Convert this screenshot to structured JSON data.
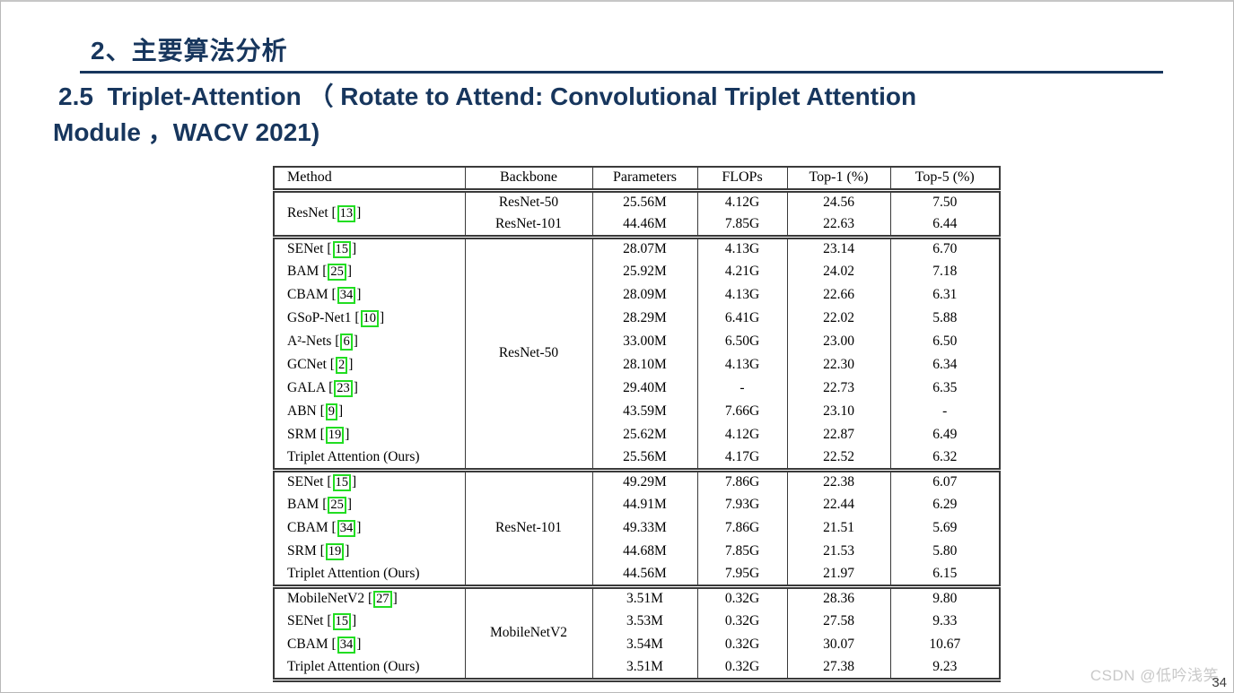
{
  "slide": {
    "section_title": "2、主要算法分析",
    "subtitle_line1": "2.5  Triplet-Attention （ Rotate to Attend: Convolutional Triplet Attention",
    "subtitle_line2": "Module ，WACV 2021)",
    "watermark": "CSDN @低吟浅笑",
    "page_number": "34",
    "accent_color": "#17365D"
  },
  "table": {
    "cite_box_color": "#22DD22",
    "headers": [
      "Method",
      "Backbone",
      "Parameters",
      "FLOPs",
      "Top-1 (%)",
      "Top-5 (%)"
    ],
    "groups": [
      {
        "method": {
          "name": "ResNet",
          "cite": "13"
        },
        "rows": [
          {
            "backbone": "ResNet-50",
            "values": [
              "25.56M",
              "4.12G",
              "24.56",
              "7.50"
            ],
            "bold": [
              1,
              1,
              0,
              0
            ]
          },
          {
            "backbone": "ResNet-101",
            "values": [
              "44.46M",
              "7.85G",
              "22.63",
              "6.44"
            ],
            "bold": [
              1,
              1,
              0,
              0
            ]
          }
        ]
      },
      {
        "backbone": "ResNet-50",
        "rows": [
          {
            "method": {
              "name": "SENet",
              "cite": "15"
            },
            "values": [
              "28.07M",
              "4.13G",
              "23.14",
              "6.70"
            ],
            "bold": [
              0,
              0,
              0,
              0
            ]
          },
          {
            "method": {
              "name": "BAM",
              "cite": "25"
            },
            "values": [
              "25.92M",
              "4.21G",
              "24.02",
              "7.18"
            ],
            "bold": [
              0,
              0,
              0,
              0
            ]
          },
          {
            "method": {
              "name": "CBAM",
              "cite": "34"
            },
            "values": [
              "28.09M",
              "4.13G",
              "22.66",
              "6.31"
            ],
            "bold": [
              0,
              0,
              0,
              0
            ]
          },
          {
            "method": {
              "name": "GSoP-Net1",
              "cite": "10"
            },
            "values": [
              "28.29M",
              "6.41G",
              "22.02",
              "5.88"
            ],
            "bold": [
              0,
              0,
              1,
              1
            ]
          },
          {
            "method": {
              "name": "A²-Nets",
              "cite": "6"
            },
            "values": [
              "33.00M",
              "6.50G",
              "23.00",
              "6.50"
            ],
            "bold": [
              0,
              0,
              0,
              0
            ]
          },
          {
            "method": {
              "name": "GCNet",
              "cite": "2"
            },
            "values": [
              "28.10M",
              "4.13G",
              "22.30",
              "6.34"
            ],
            "bold": [
              0,
              0,
              0,
              0
            ]
          },
          {
            "method": {
              "name": "GALA",
              "cite": "23"
            },
            "values": [
              "29.40M",
              "-",
              "22.73",
              "6.35"
            ],
            "bold": [
              0,
              0,
              0,
              0
            ]
          },
          {
            "method": {
              "name": "ABN",
              "cite": "9"
            },
            "values": [
              "43.59M",
              "7.66G",
              "23.10",
              "-"
            ],
            "bold": [
              0,
              0,
              0,
              0
            ]
          },
          {
            "method": {
              "name": "SRM",
              "cite": "19"
            },
            "values": [
              "25.62M",
              "4.12G",
              "22.87",
              "6.49"
            ],
            "bold": [
              0,
              0,
              0,
              0
            ]
          },
          {
            "method": {
              "name": "Triplet Attention (Ours)",
              "cite": null
            },
            "values": [
              "25.56M",
              "4.17G",
              "22.52",
              "6.32"
            ],
            "bold": [
              1,
              0,
              1,
              1
            ]
          }
        ]
      },
      {
        "backbone": "ResNet-101",
        "rows": [
          {
            "method": {
              "name": "SENet",
              "cite": "15"
            },
            "values": [
              "49.29M",
              "7.86G",
              "22.38",
              "6.07"
            ],
            "bold": [
              0,
              0,
              0,
              0
            ]
          },
          {
            "method": {
              "name": "BAM",
              "cite": "25"
            },
            "values": [
              "44.91M",
              "7.93G",
              "22.44",
              "6.29"
            ],
            "bold": [
              0,
              0,
              0,
              0
            ]
          },
          {
            "method": {
              "name": "CBAM",
              "cite": "34"
            },
            "values": [
              "49.33M",
              "7.86G",
              "21.51",
              "5.69"
            ],
            "bold": [
              0,
              0,
              1,
              1
            ]
          },
          {
            "method": {
              "name": "SRM",
              "cite": "19"
            },
            "values": [
              "44.68M",
              "7.85G",
              "21.53",
              "5.80"
            ],
            "bold": [
              0,
              0,
              0,
              0
            ]
          },
          {
            "method": {
              "name": "Triplet Attention (Ours)",
              "cite": null
            },
            "values": [
              "44.56M",
              "7.95G",
              "21.97",
              "6.15"
            ],
            "bold": [
              1,
              0,
              1,
              1
            ]
          }
        ]
      },
      {
        "backbone": "MobileNetV2",
        "rows": [
          {
            "method": {
              "name": "MobileNetV2",
              "cite": "27"
            },
            "values": [
              "3.51M",
              "0.32G",
              "28.36",
              "9.80"
            ],
            "bold": [
              1,
              1,
              0,
              0
            ]
          },
          {
            "method": {
              "name": "SENet",
              "cite": "15"
            },
            "values": [
              "3.53M",
              "0.32G",
              "27.58",
              "9.33"
            ],
            "bold": [
              0,
              0,
              0,
              0
            ]
          },
          {
            "method": {
              "name": "CBAM",
              "cite": "34"
            },
            "values": [
              "3.54M",
              "0.32G",
              "30.07",
              "10.67"
            ],
            "bold": [
              0,
              0,
              0,
              0
            ]
          },
          {
            "method": {
              "name": "Triplet Attention (Ours)",
              "cite": null
            },
            "values": [
              "3.51M",
              "0.32G",
              "27.38",
              "9.23"
            ],
            "bold": [
              1,
              0,
              1,
              1
            ]
          }
        ]
      }
    ]
  }
}
